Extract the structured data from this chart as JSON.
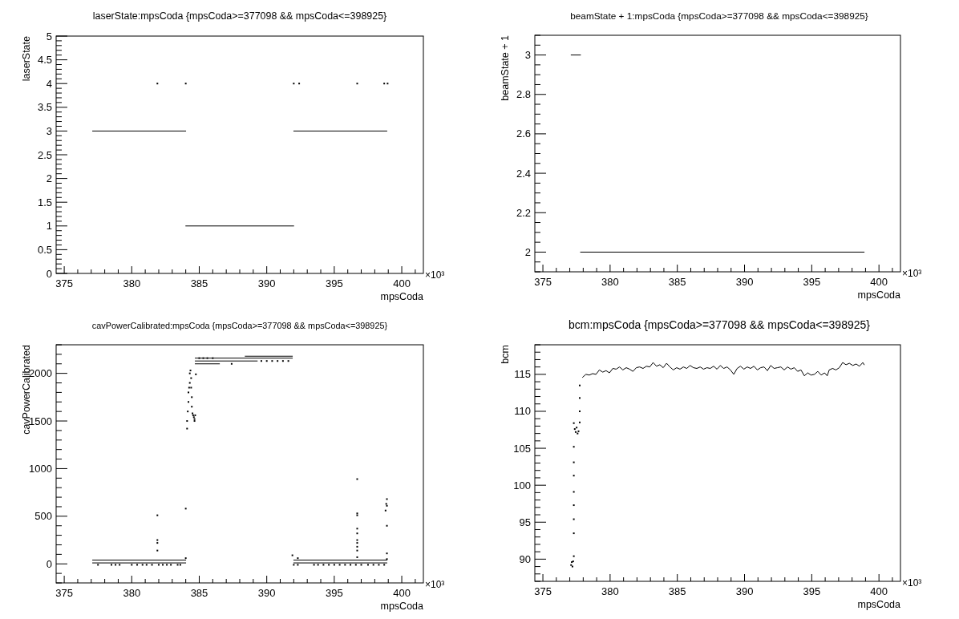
{
  "chart_data": [
    {
      "type": "scatter",
      "title": "laserState:mpsCoda {mpsCoda>=377098 && mpsCoda<=398925}",
      "xlabel": "mpsCoda",
      "ylabel": "laserState",
      "annotations": [
        "×10³"
      ],
      "xlim": [
        374.4,
        401.6
      ],
      "xticks": [
        375,
        380,
        385,
        390,
        395,
        400
      ],
      "ylim": [
        0,
        5
      ],
      "yticks": [
        0,
        0.5,
        1,
        1.5,
        2,
        2.5,
        3,
        3.5,
        4,
        4.5,
        5
      ],
      "series": [
        {
          "type": "line",
          "marker": "none",
          "color": "#000000",
          "x": [
            377.1,
            384.0
          ],
          "values": [
            3,
            3
          ]
        },
        {
          "type": "line",
          "marker": "none",
          "color": "#000000",
          "x": [
            384.0,
            392.0
          ],
          "values": [
            1,
            1
          ]
        },
        {
          "type": "line",
          "marker": "none",
          "color": "#000000",
          "x": [
            392.0,
            398.9
          ],
          "values": [
            3,
            3
          ]
        },
        {
          "marker": "square",
          "color": "#000000",
          "x": [
            381.9,
            384.0,
            392.0,
            392.4,
            396.7,
            398.7,
            398.95
          ],
          "values": [
            4,
            4,
            4,
            4,
            4,
            4,
            4
          ]
        }
      ]
    },
    {
      "type": "line",
      "title": "beamState + 1:mpsCoda {mpsCoda>=377098 && mpsCoda<=398925}",
      "xlabel": "mpsCoda",
      "ylabel": "beamState + 1",
      "annotations": [
        "×10³"
      ],
      "xlim": [
        374.4,
        401.6
      ],
      "xticks": [
        375,
        380,
        385,
        390,
        395,
        400
      ],
      "ylim": [
        1.9,
        3.1
      ],
      "yticks": [
        2,
        2.2,
        2.4,
        2.6,
        2.8,
        3
      ],
      "series": [
        {
          "marker": "none",
          "color": "#000000",
          "x": [
            377.1,
            377.8
          ],
          "values": [
            3,
            3
          ]
        },
        {
          "marker": "none",
          "color": "#000000",
          "x": [
            377.8,
            398.9
          ],
          "values": [
            2,
            2
          ]
        }
      ]
    },
    {
      "type": "scatter",
      "title": "cavPowerCalibrated:mpsCoda {mpsCoda>=377098 && mpsCoda<=398925}",
      "xlabel": "mpsCoda",
      "ylabel": "cavPowerCalibrated",
      "annotations": [
        "×10³"
      ],
      "xlim": [
        374.4,
        401.6
      ],
      "xticks": [
        375,
        380,
        385,
        390,
        395,
        400
      ],
      "ylim": [
        -200,
        2300
      ],
      "yticks": [
        0,
        500,
        1000,
        1500,
        2000
      ],
      "series": [
        {
          "type": "line",
          "marker": "none",
          "color": "#000000",
          "x": [
            377.1,
            384.0
          ],
          "values": [
            40,
            40
          ]
        },
        {
          "type": "line",
          "marker": "none",
          "color": "#000000",
          "x": [
            377.1,
            384.0
          ],
          "values": [
            10,
            10
          ]
        },
        {
          "type": "line",
          "marker": "none",
          "color": "#000000",
          "x": [
            392.0,
            398.9
          ],
          "values": [
            40,
            40
          ]
        },
        {
          "type": "line",
          "marker": "none",
          "color": "#000000",
          "x": [
            392.0,
            398.9
          ],
          "values": [
            10,
            10
          ]
        },
        {
          "type": "line",
          "marker": "none",
          "color": "#000000",
          "x": [
            384.7,
            391.9
          ],
          "values": [
            2160,
            2160
          ]
        },
        {
          "type": "line",
          "marker": "none",
          "color": "#000000",
          "x": [
            384.7,
            389.3
          ],
          "values": [
            2130,
            2130
          ]
        },
        {
          "type": "line",
          "marker": "none",
          "color": "#000000",
          "x": [
            384.7,
            386.5
          ],
          "values": [
            2100,
            2100
          ]
        },
        {
          "type": "line",
          "marker": "none",
          "color": "#000000",
          "x": [
            388.4,
            391.9
          ],
          "values": [
            2180,
            2180
          ]
        },
        {
          "marker": "square",
          "color": "#000000",
          "x": [
            384.1,
            384.1,
            384.15,
            384.2,
            384.2,
            384.25,
            384.3,
            384.3,
            384.35,
            384.4,
            384.4,
            384.45,
            384.45,
            384.5,
            384.55,
            384.6,
            384.65,
            384.7,
            384.65,
            384.75,
            384.0,
            384.0,
            381.9,
            381.9,
            381.9,
            381.9,
            391.9,
            392.3,
            396.7,
            396.7,
            396.7,
            396.7,
            396.7,
            396.7,
            396.7,
            396.7,
            396.7,
            396.7,
            398.9,
            398.85,
            398.9,
            398.8,
            398.9,
            398.9,
            398.9,
            389.6,
            390.0,
            390.4,
            390.8,
            391.2,
            391.6,
            385.0,
            385.3,
            385.6,
            386.0,
            387.4
          ],
          "values": [
            1420,
            1500,
            1600,
            1700,
            1800,
            1850,
            1900,
            2000,
            2030,
            1950,
            1850,
            1750,
            1650,
            1580,
            1560,
            1540,
            1520,
            1560,
            1500,
            1990,
            580,
            60,
            510,
            250,
            220,
            140,
            90,
            60,
            890,
            530,
            510,
            370,
            320,
            250,
            220,
            180,
            140,
            70,
            680,
            630,
            610,
            560,
            400,
            110,
            50,
            2130,
            2130,
            2130,
            2130,
            2130,
            2130,
            2160,
            2160,
            2160,
            2160,
            2100
          ]
        },
        {
          "marker": "square",
          "color": "#000000",
          "x": [
            377.5,
            378.5,
            378.8,
            379.1,
            380.0,
            380.4,
            380.8,
            381.1,
            381.5,
            382.0,
            382.3,
            382.6,
            382.9,
            383.4,
            383.6,
            392.0,
            392.3,
            393.5,
            393.8,
            394.2,
            394.6,
            395.0,
            395.4,
            395.8,
            396.2,
            396.6,
            397.0,
            397.5,
            397.9,
            398.3,
            398.7
          ],
          "values": [
            -10,
            -10,
            -10,
            -10,
            -10,
            -10,
            -10,
            -10,
            -10,
            -10,
            -10,
            -10,
            -10,
            -10,
            -10,
            -10,
            -10,
            -10,
            -10,
            -10,
            -10,
            -10,
            -10,
            -10,
            -10,
            -10,
            -10,
            -10,
            -10,
            -10,
            -10
          ]
        }
      ]
    },
    {
      "type": "scatter",
      "title": "bcm:mpsCoda {mpsCoda>=377098 && mpsCoda<=398925}",
      "xlabel": "mpsCoda",
      "ylabel": "bcm",
      "annotations": [
        "×10³"
      ],
      "xlim": [
        374.4,
        401.6
      ],
      "xticks": [
        375,
        380,
        385,
        390,
        395,
        400
      ],
      "ylim": [
        87,
        119
      ],
      "yticks": [
        90,
        95,
        100,
        105,
        110,
        115
      ],
      "series": [
        {
          "marker": "square",
          "color": "#000000",
          "x": [
            377.1,
            377.15,
            377.2,
            377.25,
            377.3,
            377.3,
            377.3,
            377.3,
            377.3,
            377.3,
            377.3,
            377.3,
            377.3,
            377.37,
            377.44,
            377.51,
            377.58,
            377.65,
            377.74,
            377.74,
            377.74,
            377.74
          ],
          "values": [
            89.2,
            89.6,
            89.0,
            89.7,
            90.4,
            93.5,
            95.4,
            97.3,
            99.1,
            101.3,
            103.1,
            105.2,
            108.4,
            107.6,
            107.2,
            107.8,
            107.0,
            107.3,
            108.5,
            110.0,
            111.8,
            113.5
          ]
        },
        {
          "type": "line",
          "marker": "none",
          "color": "#000000",
          "x": [
            377.95,
            378.2,
            378.45,
            378.7,
            378.95,
            379.2,
            379.45,
            379.7,
            379.95,
            380.2,
            380.45,
            380.7,
            380.95,
            381.2,
            381.45,
            381.7,
            381.95,
            382.2,
            382.45,
            382.7,
            382.95,
            383.2,
            383.45,
            383.7,
            383.95,
            384.2,
            384.45,
            384.7,
            384.95,
            385.2,
            385.45,
            385.7,
            385.95,
            386.2,
            386.45,
            386.7,
            386.95,
            387.2,
            387.45,
            387.7,
            387.95,
            388.2,
            388.45,
            388.7,
            388.95,
            389.2,
            389.45,
            389.7,
            389.95,
            390.2,
            390.45,
            390.7,
            390.95,
            391.2,
            391.45,
            391.7,
            391.95,
            392.2,
            392.45,
            392.7,
            392.95,
            393.2,
            393.45,
            393.7,
            393.95,
            394.2,
            394.45,
            394.7,
            394.95,
            395.2,
            395.45,
            395.7,
            395.95,
            396.15,
            396.3,
            396.55,
            396.8,
            397.05,
            397.3,
            397.55,
            397.8,
            398.05,
            398.3,
            398.55,
            398.8,
            398.9
          ],
          "values": [
            114.6,
            115.0,
            114.9,
            115.1,
            115.0,
            115.6,
            115.3,
            115.5,
            115.2,
            115.8,
            115.7,
            116.0,
            115.6,
            115.9,
            115.7,
            115.4,
            115.9,
            116.0,
            115.8,
            116.1,
            116.0,
            116.6,
            116.1,
            116.3,
            115.9,
            116.5,
            116.0,
            115.6,
            115.9,
            115.7,
            116.0,
            115.8,
            116.2,
            115.9,
            115.8,
            116.0,
            115.7,
            115.9,
            115.8,
            116.1,
            115.7,
            116.2,
            115.8,
            116.0,
            115.6,
            115.0,
            115.8,
            116.1,
            115.7,
            116.0,
            115.8,
            116.1,
            115.6,
            115.9,
            116.0,
            115.5,
            116.2,
            115.8,
            115.9,
            116.0,
            115.6,
            116.0,
            115.7,
            115.9,
            115.4,
            115.6,
            114.8,
            115.2,
            114.9,
            115.0,
            115.4,
            114.9,
            115.2,
            114.8,
            115.6,
            115.8,
            115.6,
            115.9,
            116.6,
            116.3,
            116.5,
            116.2,
            116.4,
            116.1,
            116.6,
            116.3
          ]
        }
      ]
    }
  ]
}
